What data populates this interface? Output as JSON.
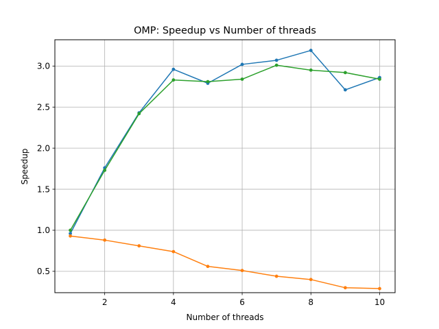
{
  "chart_data": {
    "type": "line",
    "title": "OMP: Speedup vs Number of threads",
    "xlabel": "Number of threads",
    "ylabel": "Speedup",
    "xlim": [
      0.55,
      10.45
    ],
    "ylim": [
      0.24,
      3.32
    ],
    "xticks": [
      2,
      4,
      6,
      8,
      10
    ],
    "yticks": [
      0.5,
      1.0,
      1.5,
      2.0,
      2.5,
      3.0
    ],
    "ytick_labels": [
      "0.5",
      "1.0",
      "1.5",
      "2.0",
      "2.5",
      "3.0"
    ],
    "grid": true,
    "x": [
      1,
      2,
      3,
      4,
      5,
      6,
      7,
      8,
      9,
      10
    ],
    "series": [
      {
        "color": "#1f77b4",
        "values": [
          0.96,
          1.76,
          2.43,
          2.96,
          2.79,
          3.02,
          3.07,
          3.19,
          2.71,
          2.86
        ]
      },
      {
        "color": "#ff7f0e",
        "values": [
          0.93,
          0.88,
          0.81,
          0.74,
          0.56,
          0.51,
          0.44,
          0.4,
          0.3,
          0.29
        ]
      },
      {
        "color": "#2ca02c",
        "values": [
          1.0,
          1.73,
          2.42,
          2.83,
          2.81,
          2.84,
          3.01,
          2.95,
          2.92,
          2.84
        ]
      }
    ]
  }
}
